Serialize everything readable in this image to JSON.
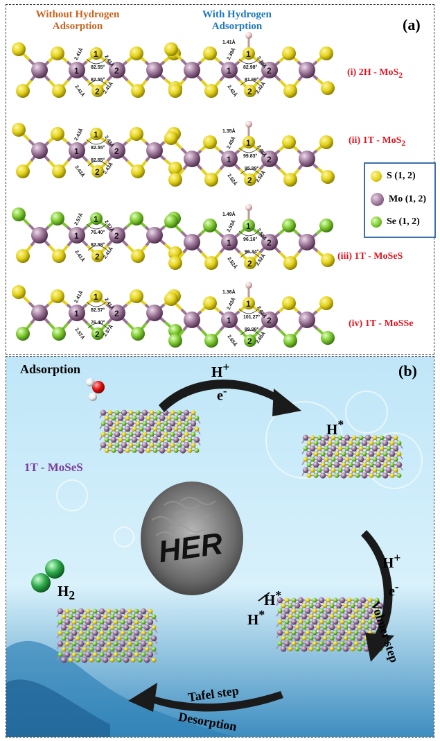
{
  "panel_a": {
    "tag": "(a)",
    "col_without": [
      "Without Hydrogen",
      "Adsorption"
    ],
    "col_with": [
      "With Hydrogen",
      "Adsorption"
    ],
    "rows": [
      {
        "label": "(i) 2H - MoS",
        "sub": "2"
      },
      {
        "label": "(ii) 1T - MoS",
        "sub": "2"
      },
      {
        "label": "(iii) 1T - MoSeS",
        "sub": ""
      },
      {
        "label": "(iv) 1T - MoSSe",
        "sub": ""
      }
    ],
    "legend": [
      {
        "label": "S (1, 2)",
        "color": "#e3d21a"
      },
      {
        "label": "Mo (1, 2)",
        "color": "#9a7396"
      },
      {
        "label": "Se (1, 2)",
        "color": "#7cc72c"
      }
    ],
    "annotations": {
      "r1l": [
        "2.41Å",
        "2.41Å",
        "82.55°",
        "82.55°",
        "2.41Å",
        "2.41Å"
      ],
      "r1r": [
        "1.41Å",
        "2.39Å",
        "2.39Å",
        "82.98°",
        "81.69°",
        "2.42Å",
        "2.42Å"
      ],
      "r2l": [
        "2.43Å",
        "2.43Å",
        "82.55°",
        "82.55°",
        "2.43Å",
        "2.43Å"
      ],
      "r2r": [
        "1.35Å",
        "2.45Å",
        "2.45Å",
        "99.83°",
        "95.89°",
        "2.52Å",
        "2.52Å"
      ],
      "r3l": [
        "2.57Å",
        "2.57Å",
        "76.40°",
        "82.58°",
        "2.41Å",
        "2.41Å"
      ],
      "r3r": [
        "1.49Å",
        "2.53Å",
        "2.53Å",
        "96.16°",
        "96.34°",
        "2.52Å",
        "2.52Å"
      ],
      "r4l": [
        "2.41Å",
        "2.41Å",
        "82.57°",
        "76.40°",
        "2.57Å",
        "2.57Å"
      ],
      "r4r": [
        "1.36Å",
        "2.43Å",
        "2.43Å",
        "101.27°",
        "89.98°",
        "2.65Å",
        "2.65Å"
      ]
    },
    "atom_numbers": [
      "1",
      "2"
    ]
  },
  "panel_b": {
    "tag": "(b)",
    "adsorption": "Adsorption",
    "material": "1T - MoSeS",
    "h_plus": "H",
    "plus_sup": "+",
    "e_minus": "e",
    "minus_sup": "-",
    "h_star": "H",
    "star_sup": "*",
    "center": "HER",
    "volmer": "Volmer step",
    "tafel": "Tafel step",
    "desorption": "Desorption",
    "h2": "H",
    "h2_sub": "2"
  },
  "colors": {
    "S": "#e3d21a",
    "Mo": "#9a7396",
    "Se": "#7cc72c",
    "H": "#e8c9c9",
    "label_red": "#e0141e",
    "orange": "#c8641e",
    "blue": "#1e78be",
    "purple": "#7b3a9a"
  }
}
